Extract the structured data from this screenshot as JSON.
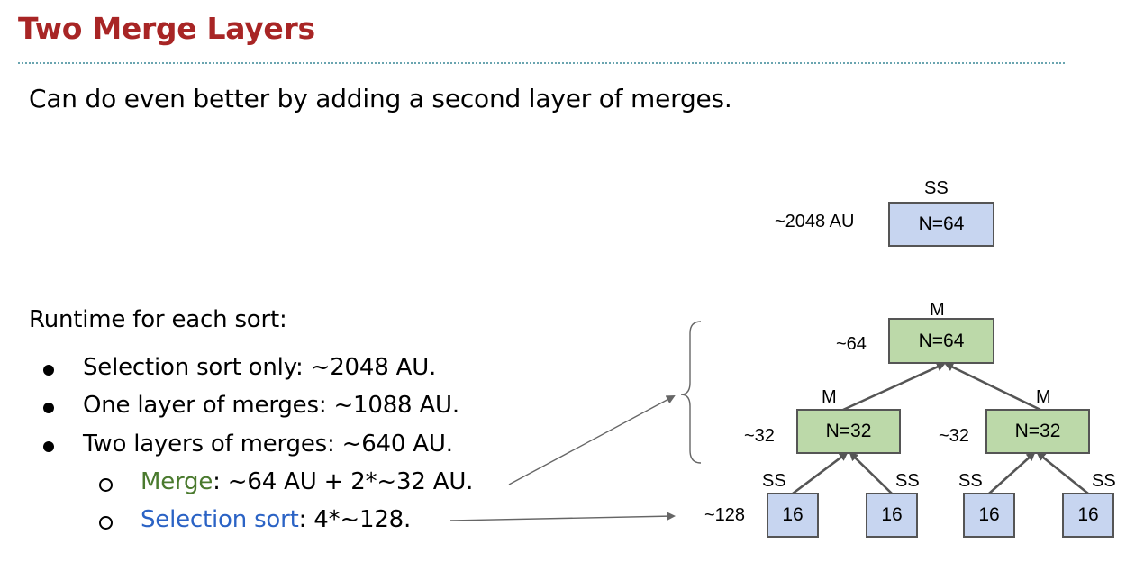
{
  "slide": {
    "title": "Two Merge Layers",
    "intro": "Can do even better by adding a second layer of merges."
  },
  "runtime": {
    "heading": "Runtime for each sort:",
    "items": [
      "Selection sort only: ~2048 AU.",
      "One layer of merges: ~1088 AU.",
      "Two layers of merges:  ~640 AU."
    ],
    "sub_items": [
      {
        "term": "Merge",
        "rest": ": ~64 AU + 2*~32 AU."
      },
      {
        "term": "Selection sort",
        "rest": ": 4*~128."
      }
    ]
  },
  "diagram": {
    "top": {
      "type_label": "SS",
      "cost": "~2048 AU",
      "box": "N=64"
    },
    "root": {
      "type_label": "M",
      "cost": "~64",
      "box": "N=64"
    },
    "mid": [
      {
        "type_label": "M",
        "cost": "~32",
        "box": "N=32"
      },
      {
        "type_label": "M",
        "cost": "~32",
        "box": "N=32"
      }
    ],
    "leaf_cost": "~128",
    "leaves": [
      {
        "type_label": "SS",
        "box": "16"
      },
      {
        "type_label": "SS",
        "box": "16"
      },
      {
        "type_label": "SS",
        "box": "16"
      },
      {
        "type_label": "SS",
        "box": "16"
      }
    ]
  },
  "colors": {
    "title": "#a82525",
    "merge_text": "#4a7a2e",
    "selection_text": "#2b63c5",
    "ss_fill": "#c7d5f0",
    "m_fill": "#bcd9a9"
  }
}
